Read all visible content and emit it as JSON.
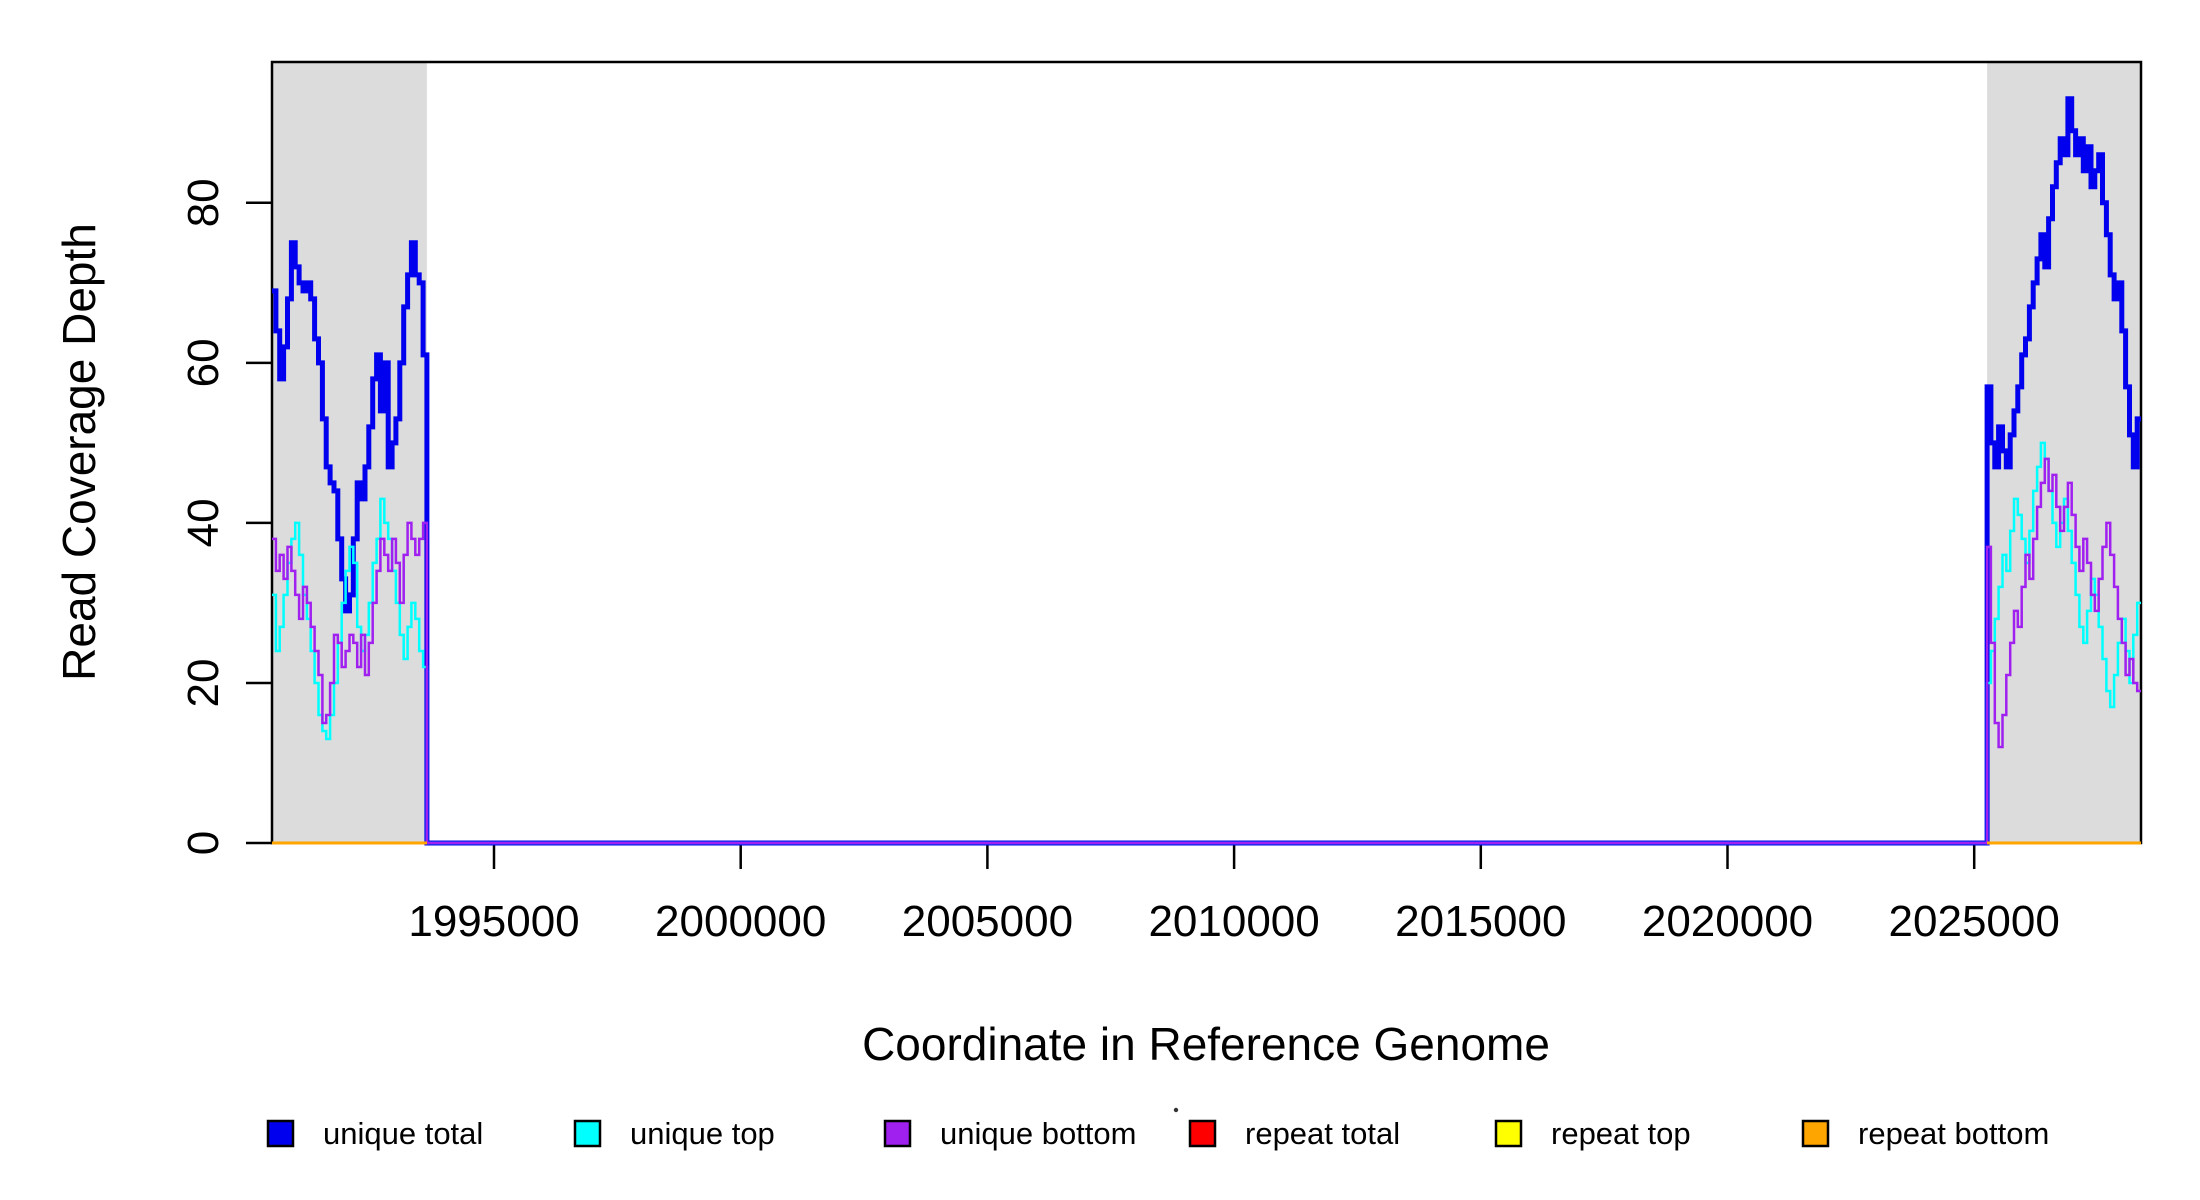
{
  "chart_data": {
    "type": "line",
    "subtype": "step-coverage",
    "title": "",
    "xlabel": "Coordinate in Reference Genome",
    "ylabel": "Read Coverage Depth",
    "xlim": [
      1990500,
      2028380
    ],
    "ylim": [
      0,
      97.6
    ],
    "grid": false,
    "x_tick_values": [
      1995000,
      2000000,
      2005000,
      2010000,
      2015000,
      2020000,
      2025000
    ],
    "x_tick_labels": [
      "1995000",
      "2000000",
      "2005000",
      "2010000",
      "2015000",
      "2020000",
      "2025000"
    ],
    "y_tick_values": [
      0,
      20,
      40,
      60,
      80
    ],
    "y_tick_labels": [
      "0",
      "20",
      "40",
      "60",
      "80"
    ],
    "shaded_region_color": "#DCDCDC",
    "shaded_regions": [
      {
        "x0": 1990500,
        "x1": 1993640
      },
      {
        "x0": 2025260,
        "x1": 2028380
      }
    ],
    "series": [
      {
        "name": "unique total",
        "color": "#0000EE",
        "lwd": 5,
        "segments": [
          {
            "x0": 1990500,
            "x1": 1993640,
            "values": [
              69,
              64,
              58,
              62,
              68,
              75,
              72,
              70,
              69,
              70,
              68,
              63,
              60,
              53,
              47,
              45,
              44,
              38,
              33,
              29,
              31,
              38,
              45,
              43,
              47,
              52,
              58,
              61,
              54,
              60,
              47,
              50,
              53,
              60,
              67,
              71,
              75,
              71,
              70,
              61
            ]
          },
          {
            "x0": 1993640,
            "x1": 2025260,
            "values": [
              0
            ]
          },
          {
            "x0": 2025260,
            "x1": 2028380,
            "values": [
              57,
              50,
              47,
              52,
              49,
              47,
              51,
              54,
              57,
              61,
              63,
              67,
              70,
              73,
              76,
              72,
              78,
              82,
              85,
              88,
              86,
              93,
              89,
              86,
              88,
              84,
              87,
              82,
              84,
              86,
              80,
              76,
              71,
              68,
              70,
              64,
              57,
              51,
              47,
              53
            ]
          }
        ]
      },
      {
        "name": "unique top",
        "color": "#00FFFF",
        "lwd": 2.5,
        "segments": [
          {
            "x0": 1990500,
            "x1": 1993640,
            "values": [
              31,
              24,
              27,
              31,
              35,
              38,
              40,
              36,
              31,
              28,
              24,
              20,
              16,
              14,
              13,
              16,
              20,
              25,
              30,
              34,
              37,
              35,
              27,
              24,
              26,
              30,
              35,
              38,
              43,
              40,
              38,
              34,
              30,
              26,
              23,
              27,
              30,
              28,
              24,
              22
            ]
          },
          {
            "x0": 1993640,
            "x1": 2025260,
            "values": [
              0
            ]
          },
          {
            "x0": 2025260,
            "x1": 2028380,
            "values": [
              20,
              24,
              28,
              32,
              36,
              34,
              39,
              43,
              41,
              38,
              35,
              39,
              44,
              47,
              50,
              48,
              44,
              40,
              37,
              40,
              43,
              39,
              35,
              31,
              27,
              25,
              29,
              33,
              31,
              27,
              23,
              19,
              17,
              21,
              25,
              28,
              24,
              20,
              26,
              30
            ]
          }
        ]
      },
      {
        "name": "unique bottom",
        "color": "#A020F0",
        "lwd": 2.5,
        "segments": [
          {
            "x0": 1990500,
            "x1": 1993640,
            "values": [
              38,
              34,
              36,
              33,
              37,
              34,
              31,
              28,
              32,
              30,
              27,
              24,
              21,
              15,
              16,
              20,
              26,
              25,
              22,
              24,
              26,
              25,
              22,
              26,
              21,
              25,
              30,
              34,
              38,
              36,
              34,
              38,
              35,
              30,
              36,
              40,
              38,
              36,
              38,
              40
            ]
          },
          {
            "x0": 1993640,
            "x1": 2025260,
            "values": [
              0
            ]
          },
          {
            "x0": 2025260,
            "x1": 2028380,
            "values": [
              37,
              25,
              15,
              12,
              16,
              21,
              25,
              29,
              27,
              32,
              36,
              33,
              38,
              42,
              45,
              48,
              44,
              46,
              42,
              39,
              42,
              45,
              41,
              37,
              34,
              38,
              35,
              31,
              29,
              33,
              37,
              40,
              36,
              32,
              28,
              25,
              21,
              23,
              20,
              19
            ]
          }
        ]
      },
      {
        "name": "repeat total",
        "color": "#FF0000",
        "lwd": 2.5,
        "segments": [
          {
            "x0": 1990500,
            "x1": 1993640,
            "values": [
              0
            ]
          },
          {
            "x0": 2025260,
            "x1": 2028380,
            "values": [
              0
            ]
          }
        ]
      },
      {
        "name": "repeat top",
        "color": "#FFFF00",
        "lwd": 2.5,
        "segments": [
          {
            "x0": 1990500,
            "x1": 1993640,
            "values": [
              0
            ]
          },
          {
            "x0": 2025260,
            "x1": 2028380,
            "values": [
              0
            ]
          }
        ]
      },
      {
        "name": "repeat bottom",
        "color": "#FFA500",
        "lwd": 3,
        "segments": [
          {
            "x0": 1990500,
            "x1": 1993640,
            "values": [
              0
            ]
          },
          {
            "x0": 2025260,
            "x1": 2028380,
            "values": [
              0
            ]
          }
        ]
      }
    ]
  },
  "legend": {
    "position": "bottom",
    "items": [
      {
        "label": "unique total",
        "color": "#0000EE"
      },
      {
        "label": "unique top",
        "color": "#00FFFF"
      },
      {
        "label": "unique bottom",
        "color": "#A020F0"
      },
      {
        "label": "repeat total",
        "color": "#FF0000"
      },
      {
        "label": "repeat top",
        "color": "#FFFF00"
      },
      {
        "label": "repeat bottom",
        "color": "#FFA500"
      }
    ]
  }
}
